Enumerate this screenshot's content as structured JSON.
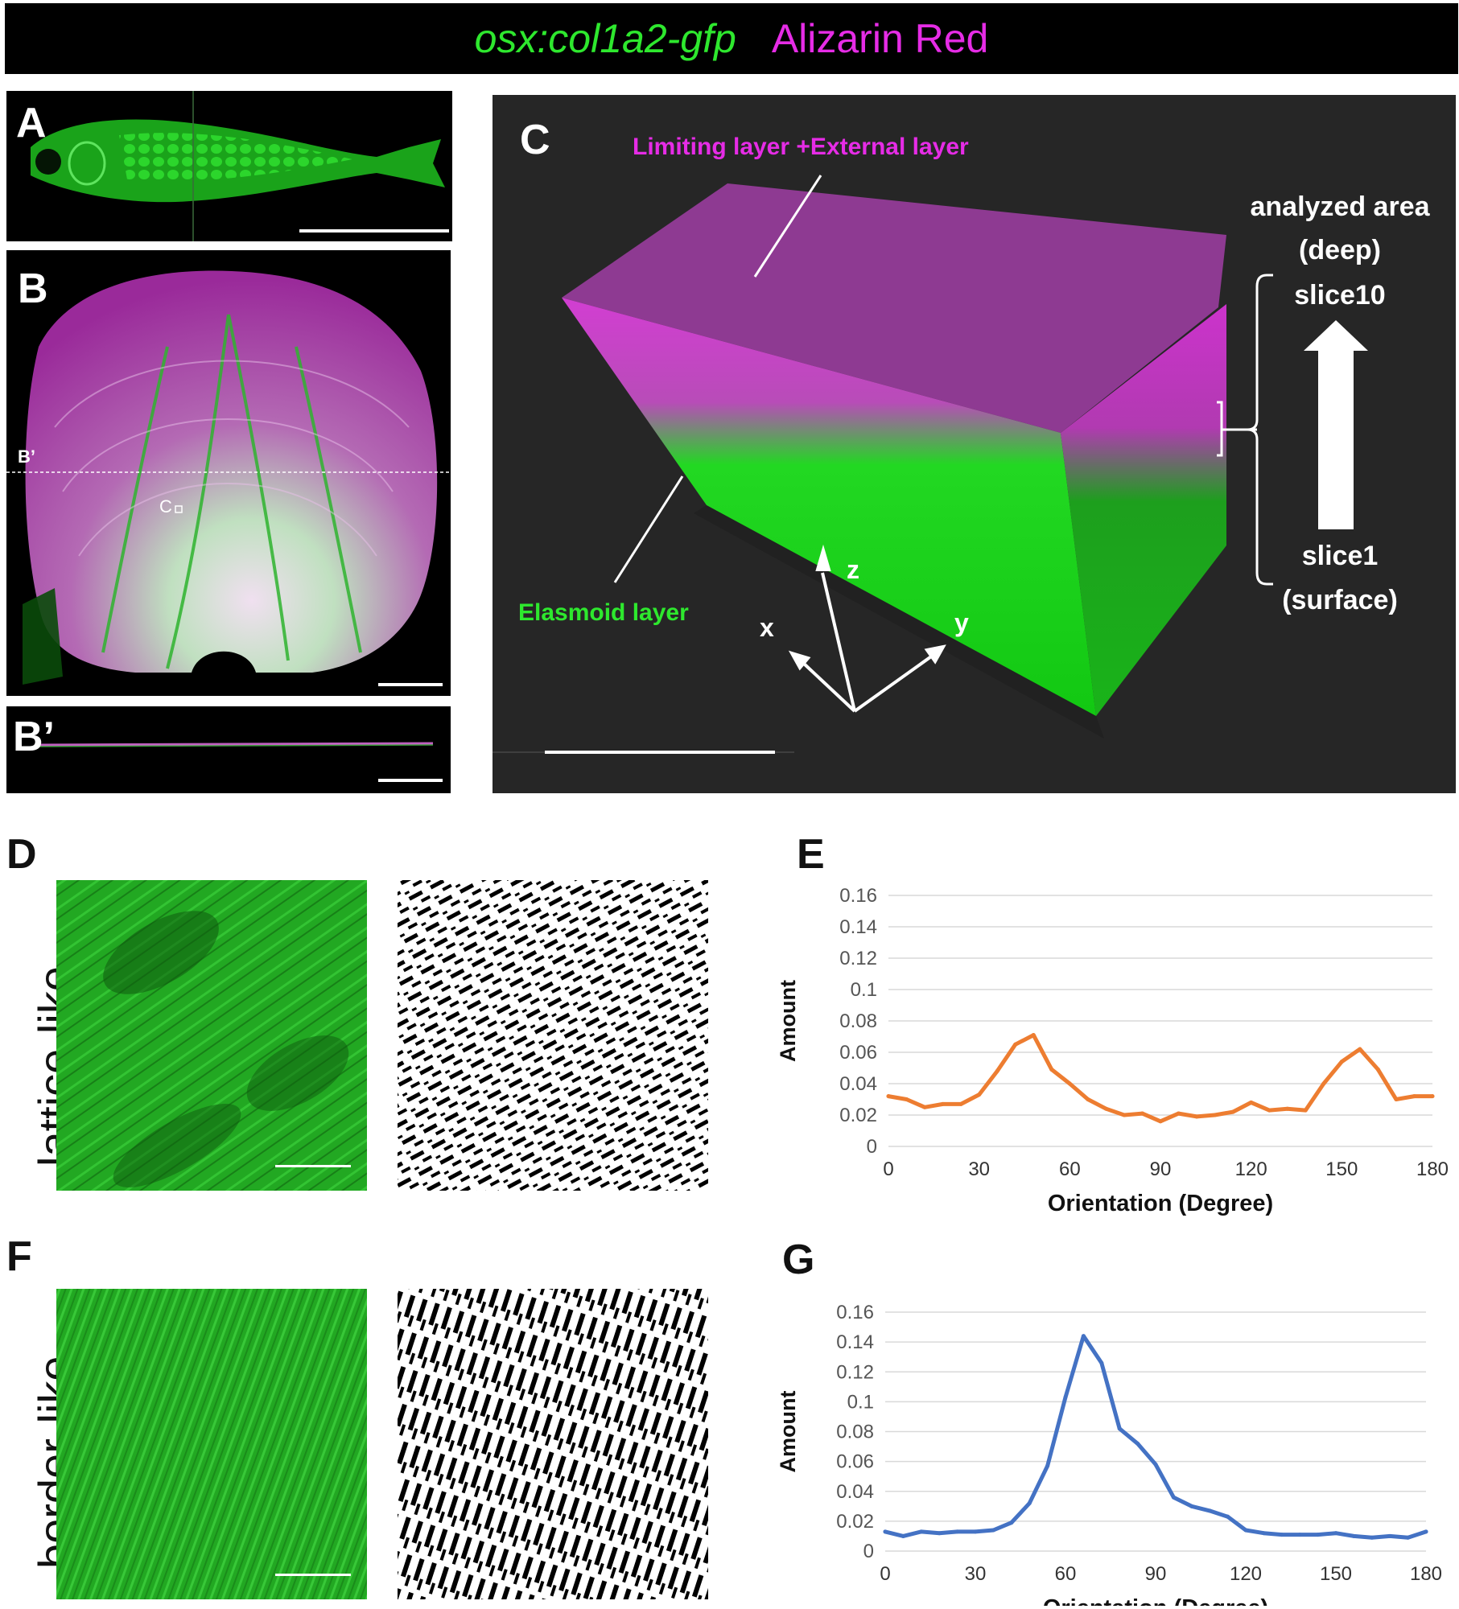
{
  "header": {
    "title_green": "osx:col1a2-gfp",
    "title_magenta": "Alizarin Red",
    "color_green": "#2ee82e",
    "color_magenta": "#e62ce6"
  },
  "panels": {
    "A": "A",
    "B": "B",
    "B_prime": "B’",
    "B_prime_marker": "B’",
    "C_marker": "C",
    "C": "C",
    "D": "D",
    "E": "E",
    "F": "F",
    "G": "G"
  },
  "panel_C": {
    "limiting_label": "Limiting layer +External layer",
    "elasmoid_label": "Elasmoid layer",
    "analyzed_area": "analyzed area",
    "deep": "(deep)",
    "slice10": "slice10",
    "slice1": "slice1",
    "surface": "(surface)",
    "axis_x": "x",
    "axis_y": "y",
    "axis_z": "z"
  },
  "row_labels": {
    "lattice": "lattice-like",
    "border": "border-like"
  },
  "chart_data": [
    {
      "type": "line",
      "panel": "E",
      "xlabel": "Orientation (Degree)",
      "ylabel": "Amount",
      "xlim": [
        0,
        180
      ],
      "ylim": [
        0,
        0.16
      ],
      "xticks": [
        "0",
        "30",
        "60",
        "90",
        "120",
        "150",
        "180"
      ],
      "yticks": [
        "0",
        "0.02",
        "0.04",
        "0.06",
        "0.08",
        "0.1",
        "0.12",
        "0.14",
        "0.16"
      ],
      "grid": true,
      "color": "#ed7d31",
      "x": [
        0,
        6,
        12,
        18,
        24,
        30,
        36,
        42,
        48,
        54,
        60,
        66,
        72,
        78,
        84,
        90,
        96,
        102,
        108,
        114,
        120,
        126,
        132,
        138,
        144,
        150,
        156,
        162,
        168,
        174,
        180
      ],
      "values": [
        0.032,
        0.03,
        0.025,
        0.027,
        0.027,
        0.033,
        0.048,
        0.065,
        0.071,
        0.049,
        0.04,
        0.03,
        0.024,
        0.02,
        0.021,
        0.016,
        0.021,
        0.019,
        0.02,
        0.022,
        0.028,
        0.023,
        0.024,
        0.023,
        0.04,
        0.054,
        0.062,
        0.049,
        0.03,
        0.032,
        0.032
      ]
    },
    {
      "type": "line",
      "panel": "G",
      "xlabel": "Orientation (Degree)",
      "ylabel": "Amount",
      "xlim": [
        0,
        180
      ],
      "ylim": [
        0,
        0.16
      ],
      "xticks": [
        "0",
        "30",
        "60",
        "90",
        "120",
        "150",
        "180"
      ],
      "yticks": [
        "0",
        "0.02",
        "0.04",
        "0.06",
        "0.08",
        "0.1",
        "0.12",
        "0.14",
        "0.16"
      ],
      "grid": true,
      "color": "#4472c4",
      "x": [
        0,
        6,
        12,
        18,
        24,
        30,
        36,
        42,
        48,
        54,
        60,
        66,
        72,
        78,
        84,
        90,
        96,
        102,
        108,
        114,
        120,
        126,
        132,
        138,
        144,
        150,
        156,
        162,
        168,
        174,
        180
      ],
      "values": [
        0.013,
        0.01,
        0.013,
        0.012,
        0.013,
        0.013,
        0.014,
        0.019,
        0.032,
        0.057,
        0.103,
        0.144,
        0.126,
        0.082,
        0.072,
        0.058,
        0.036,
        0.03,
        0.027,
        0.023,
        0.014,
        0.012,
        0.011,
        0.011,
        0.011,
        0.012,
        0.01,
        0.009,
        0.01,
        0.009,
        0.013
      ]
    }
  ]
}
